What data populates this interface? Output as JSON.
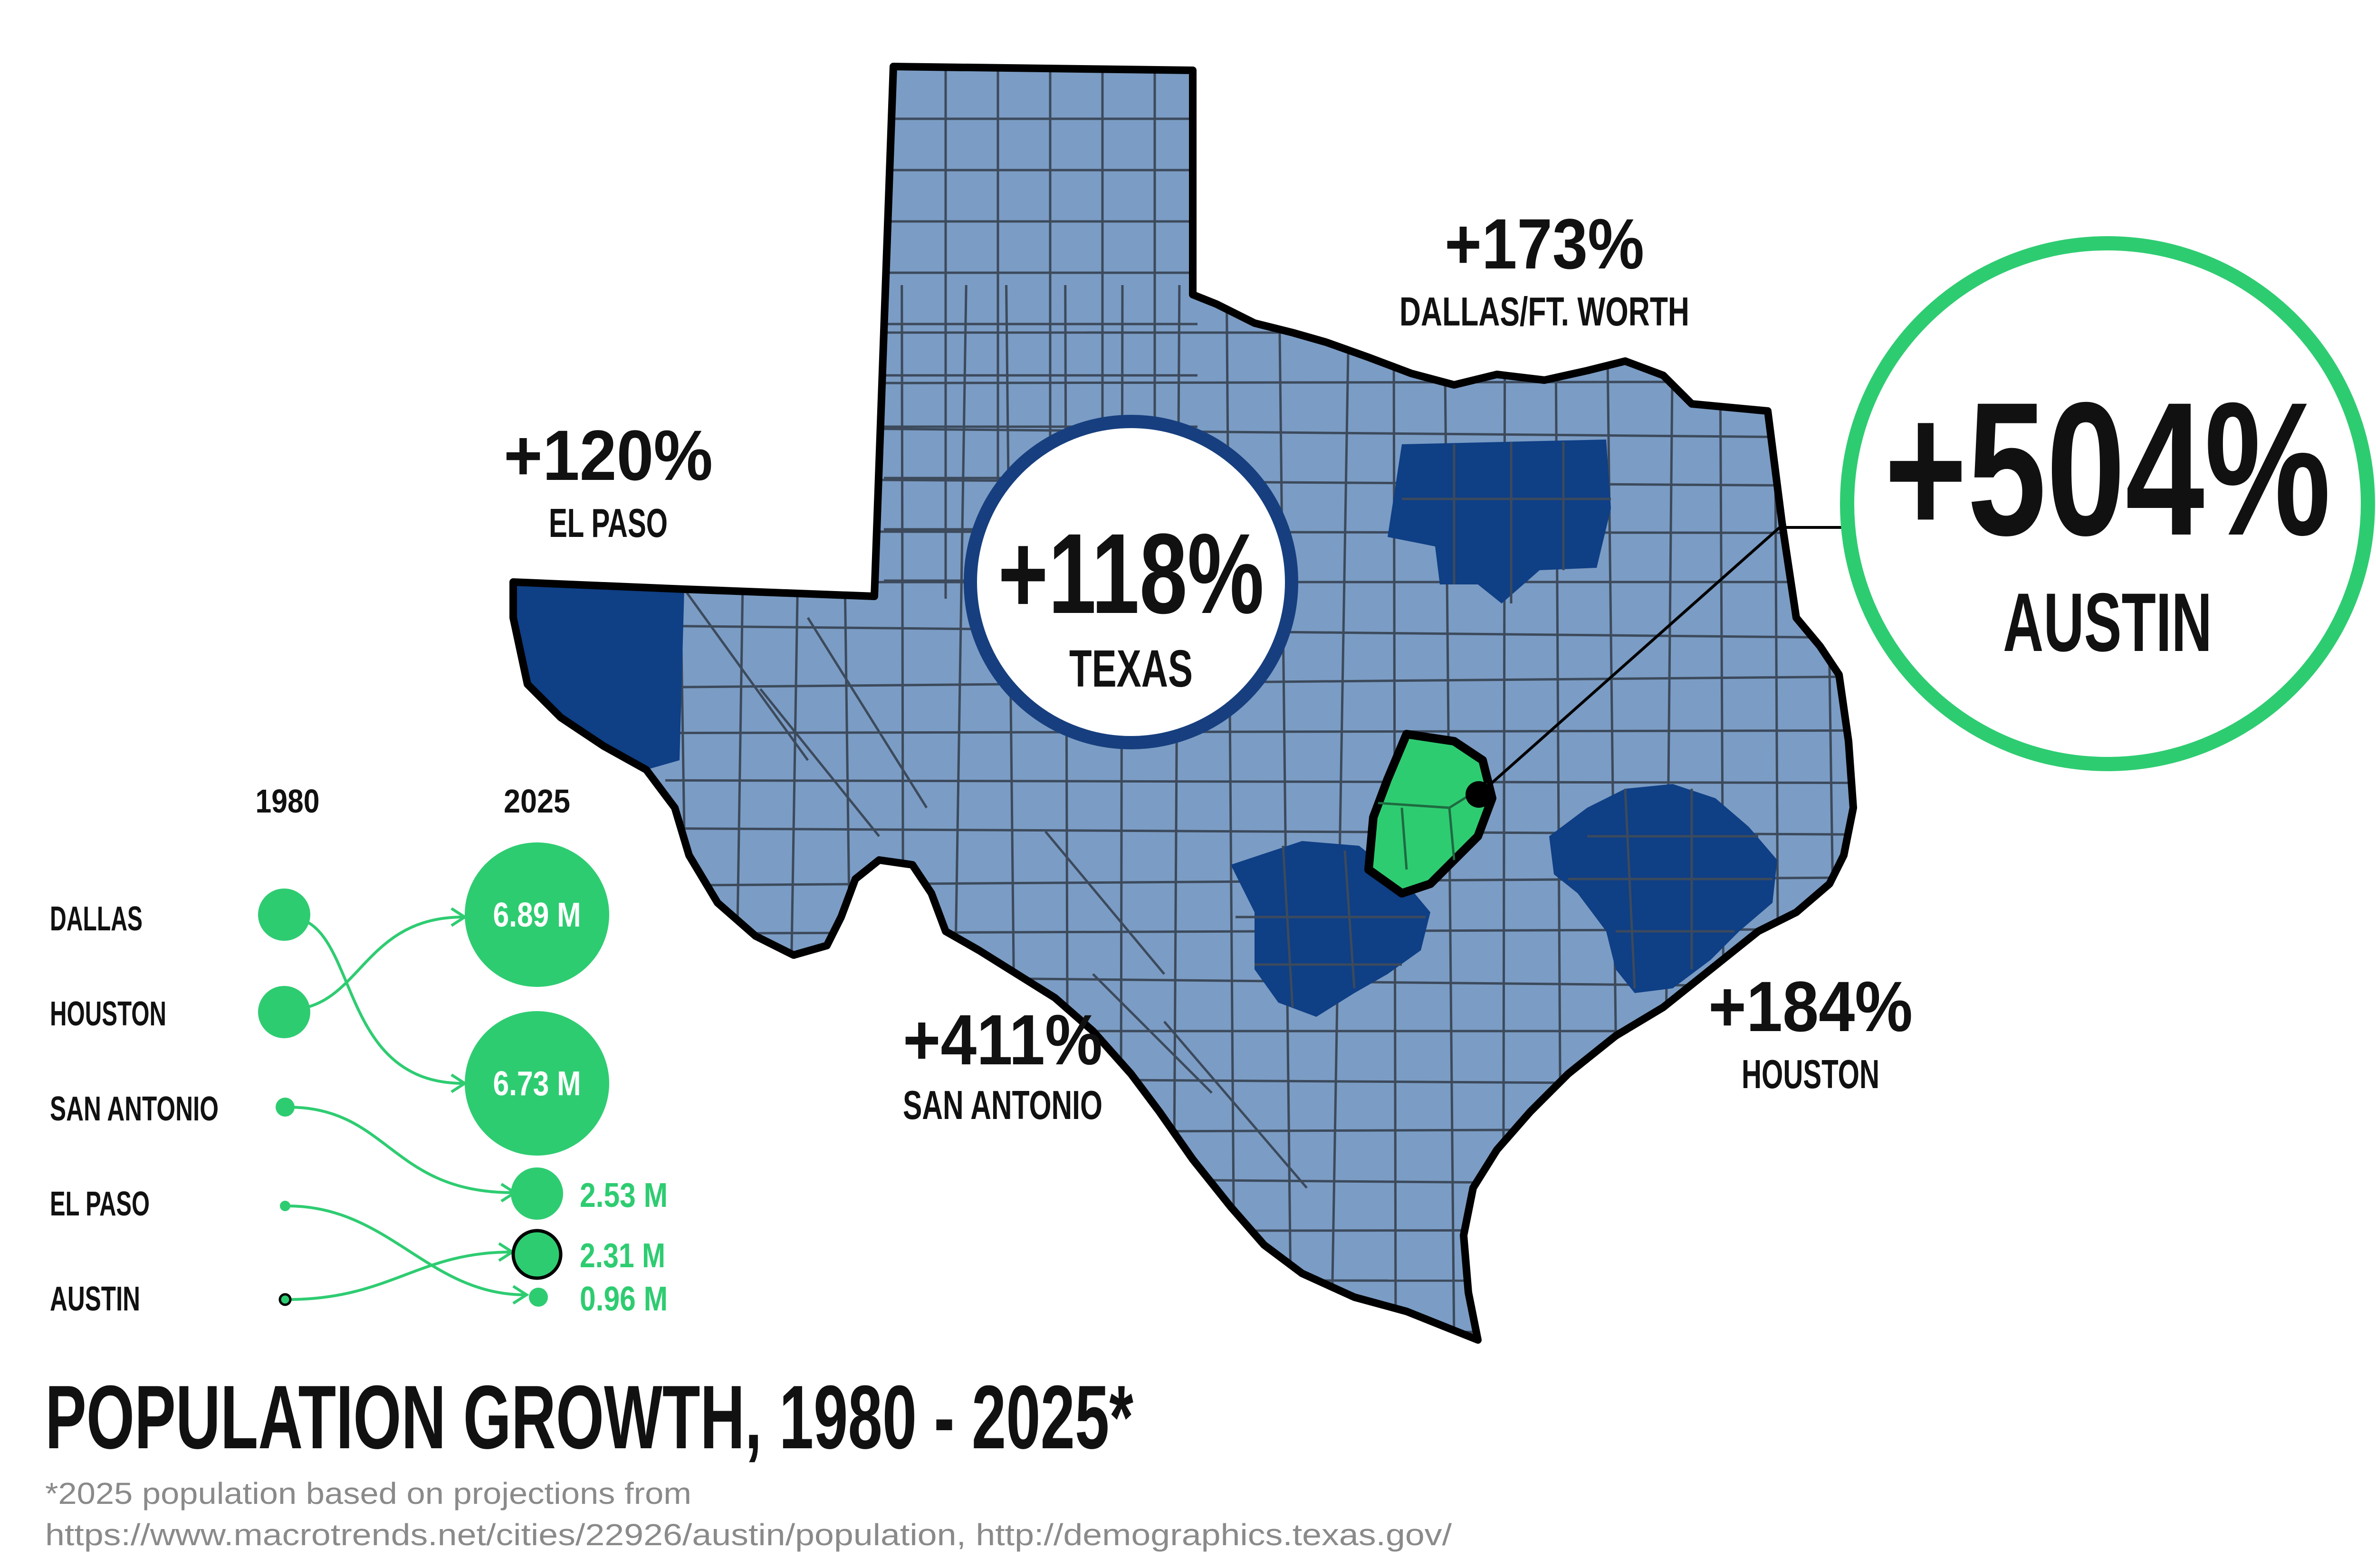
{
  "title": "POPULATION GROWTH, 1980 - 2025*",
  "footnote": {
    "line1": "*2025 population based on projections from",
    "line2": "https://www.macrotrends.net/cities/22926/austin/population, http://demographics.texas.gov/"
  },
  "callouts": {
    "austin": {
      "pct": "+504%",
      "name": "AUSTIN"
    },
    "texas": {
      "pct": "+118%",
      "name": "TEXAS"
    },
    "dallas": {
      "pct": "+173%",
      "name": "DALLAS/FT. WORTH"
    },
    "el_paso": {
      "pct": "+120%",
      "name": "EL PASO"
    },
    "san_antonio": {
      "pct": "+411%",
      "name": "SAN ANTONIO"
    },
    "houston": {
      "pct": "+184%",
      "name": "HOUSTON"
    }
  },
  "legend": {
    "col_1980": "1980",
    "col_2025": "2025",
    "rows": [
      {
        "city": "DALLAS"
      },
      {
        "city": "HOUSTON"
      },
      {
        "city": "SAN ANTONIO"
      },
      {
        "city": "EL PASO"
      },
      {
        "city": "AUSTIN"
      }
    ],
    "values_2025": [
      {
        "label": "6.89 M",
        "value_m": 6.89
      },
      {
        "label": "6.73 M",
        "value_m": 6.73
      },
      {
        "label": "2.53 M",
        "value_m": 2.53
      },
      {
        "label": "2.31 M",
        "value_m": 2.31
      },
      {
        "label": "0.96 M",
        "value_m": 0.96
      }
    ]
  },
  "colors": {
    "state_fill": "#7b9cc4",
    "county_lines": "#3c4a5c",
    "metro_fill": "#0f3f85",
    "austin_fill": "#2ecc71",
    "accent_green": "#2ecc71",
    "texas_ring": "#173f7f",
    "text": "#111111",
    "footnote": "#8a8a8a"
  }
}
